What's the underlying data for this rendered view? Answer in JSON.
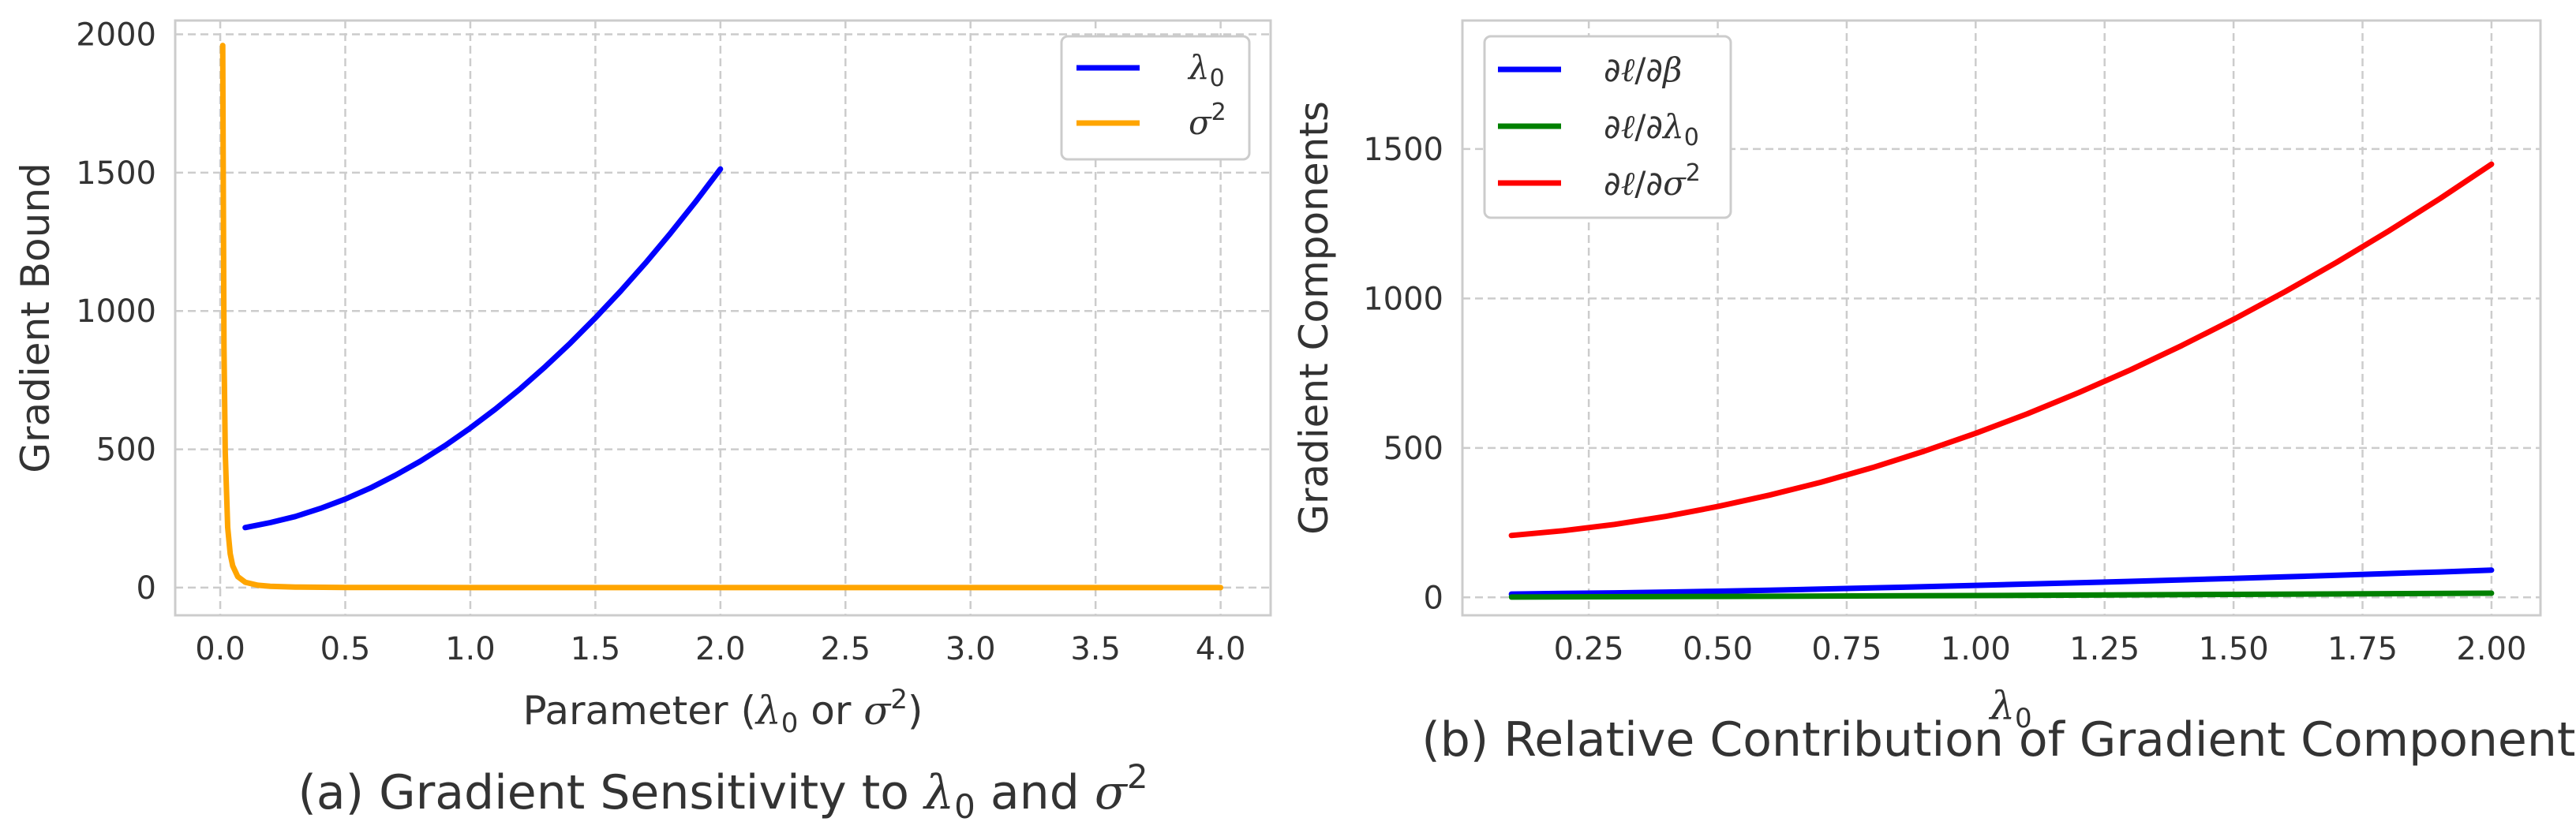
{
  "chart_data": [
    {
      "type": "line",
      "panel": "a",
      "caption": "(a) Gradient Sensitivity to λ0 and σ2",
      "xlabel": "Parameter (λ0 or σ2)",
      "ylabel": "Gradient Bound",
      "xlim": [
        -0.18,
        4.2
      ],
      "ylim": [
        -100,
        2050
      ],
      "xticks": [
        0.0,
        0.5,
        1.0,
        1.5,
        2.0,
        2.5,
        3.0,
        3.5,
        4.0
      ],
      "xtick_labels": [
        "0.0",
        "0.5",
        "1.0",
        "1.5",
        "2.0",
        "2.5",
        "3.0",
        "3.5",
        "4.0"
      ],
      "yticks": [
        0,
        500,
        1000,
        1500,
        2000
      ],
      "ytick_labels": [
        "0",
        "500",
        "1000",
        "1500",
        "2000"
      ],
      "grid": true,
      "legend_position": "top-right",
      "series": [
        {
          "name": "λ0",
          "color": "#0000ff",
          "x": [
            0.1,
            0.2,
            0.3,
            0.4,
            0.5,
            0.6,
            0.7,
            0.8,
            0.9,
            1.0,
            1.1,
            1.2,
            1.3,
            1.4,
            1.5,
            1.6,
            1.7,
            1.8,
            1.9,
            2.0
          ],
          "y": [
            217,
            235,
            257,
            286,
            320,
            360,
            406,
            457,
            514,
            577,
            645,
            719,
            799,
            884,
            975,
            1071,
            1173,
            1281,
            1394,
            1513
          ]
        },
        {
          "name": "σ2",
          "color": "#ffa500",
          "x": [
            0.01,
            0.015,
            0.02,
            0.03,
            0.04,
            0.05,
            0.07,
            0.1,
            0.15,
            0.2,
            0.3,
            0.5,
            0.75,
            1.0,
            1.5,
            2.0,
            2.5,
            3.0,
            3.5,
            4.0
          ],
          "y": [
            1960,
            871,
            490,
            218,
            122.5,
            78.4,
            40,
            19.6,
            8.7,
            4.9,
            2.2,
            0.78,
            0.35,
            0.2,
            0.09,
            0.05,
            0.03,
            0.02,
            0.016,
            0.012
          ]
        }
      ]
    },
    {
      "type": "line",
      "panel": "b",
      "caption": "(b) Relative Contribution of Gradient Components",
      "xlabel": "λ0",
      "ylabel": "Gradient Components",
      "xlim": [
        0.005,
        2.095
      ],
      "ylim": [
        -60,
        1930
      ],
      "xticks": [
        0.25,
        0.5,
        0.75,
        1.0,
        1.25,
        1.5,
        1.75,
        2.0
      ],
      "xtick_labels": [
        "0.25",
        "0.50",
        "0.75",
        "1.00",
        "1.25",
        "1.50",
        "1.75",
        "2.00"
      ],
      "yticks": [
        0,
        500,
        1000,
        1500
      ],
      "ytick_labels": [
        "0",
        "500",
        "1000",
        "1500"
      ],
      "grid": true,
      "legend_position": "top-left",
      "series": [
        {
          "name": "∂ℓ/∂β",
          "color": "#0000ff",
          "x": [
            0.1,
            0.2,
            0.3,
            0.4,
            0.5,
            0.6,
            0.7,
            0.8,
            0.9,
            1.0,
            1.1,
            1.2,
            1.3,
            1.4,
            1.5,
            1.6,
            1.7,
            1.8,
            1.9,
            2.0
          ],
          "y": [
            11,
            13,
            15,
            17.5,
            20.5,
            24,
            27.5,
            31.5,
            35.5,
            40,
            44.5,
            49,
            53.5,
            58.5,
            63.5,
            68.5,
            74,
            79.5,
            85,
            91
          ]
        },
        {
          "name": "∂ℓ/∂λ0",
          "color": "#008000",
          "x": [
            0.1,
            0.5,
            1.0,
            1.5,
            2.0
          ],
          "y": [
            1,
            3,
            6,
            10,
            14
          ]
        },
        {
          "name": "∂ℓ/∂σ2",
          "color": "#ff0000",
          "x": [
            0.1,
            0.2,
            0.3,
            0.4,
            0.5,
            0.6,
            0.7,
            0.8,
            0.9,
            1.0,
            1.1,
            1.2,
            1.3,
            1.4,
            1.5,
            1.6,
            1.7,
            1.8,
            1.9,
            2.0
          ],
          "y": [
            207,
            223,
            244,
            271,
            304,
            342,
            385,
            434,
            489,
            549,
            614,
            685,
            761,
            843,
            930,
            1023,
            1121,
            1225,
            1334,
            1449
          ]
        }
      ]
    }
  ]
}
